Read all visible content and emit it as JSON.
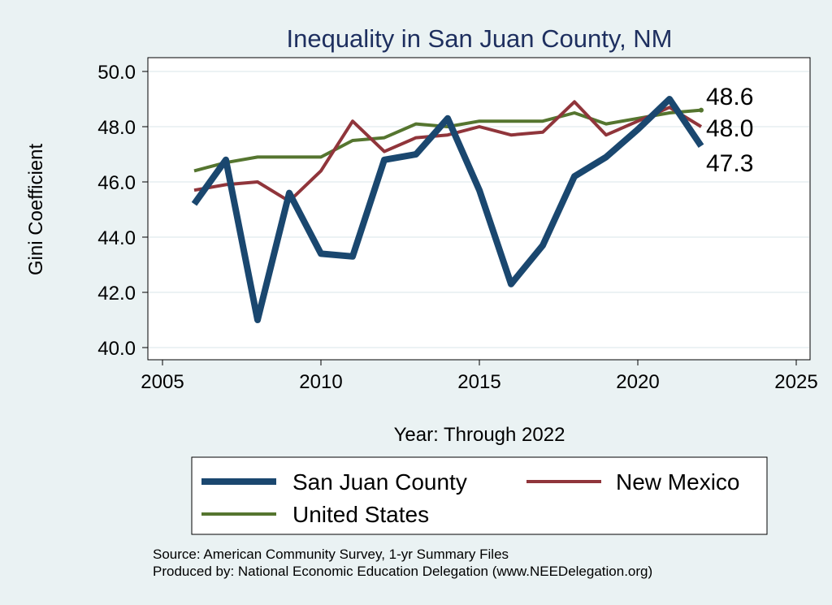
{
  "chart_data": {
    "type": "line",
    "title": "Inequality in San Juan County, NM",
    "xlabel": "Year: Through 2022",
    "ylabel": "Gini Coefficient",
    "xlim": [
      2005,
      2025
    ],
    "ylim": [
      40,
      50
    ],
    "xticks": [
      "2005",
      "2010",
      "2015",
      "2020",
      "2025"
    ],
    "yticks": [
      "40.0",
      "42.0",
      "44.0",
      "46.0",
      "48.0",
      "50.0"
    ],
    "grid": true,
    "legend_position": "bottom",
    "x": [
      2006,
      2007,
      2008,
      2009,
      2010,
      2011,
      2012,
      2013,
      2014,
      2015,
      2016,
      2017,
      2018,
      2019,
      2020,
      2021,
      2022
    ],
    "series": [
      {
        "name": "San Juan County",
        "color": "#1a476f",
        "values": [
          45.2,
          46.8,
          41.0,
          45.6,
          43.4,
          43.3,
          46.8,
          47.0,
          48.3,
          45.7,
          42.3,
          43.7,
          46.2,
          46.9,
          47.9,
          49.0,
          47.3
        ],
        "end_label": "47.3"
      },
      {
        "name": "New Mexico",
        "color": "#90353b",
        "values": [
          45.7,
          45.9,
          46.0,
          45.3,
          46.4,
          48.2,
          47.1,
          47.6,
          47.7,
          48.0,
          47.7,
          47.8,
          48.9,
          47.7,
          48.2,
          48.7,
          48.0
        ],
        "end_label": "48.0"
      },
      {
        "name": "United States",
        "color": "#55752f",
        "values": [
          46.4,
          46.7,
          46.9,
          46.9,
          46.9,
          47.5,
          47.6,
          48.1,
          48.0,
          48.2,
          48.2,
          48.2,
          48.5,
          48.1,
          48.3,
          48.5,
          48.6
        ],
        "end_label": "48.6"
      }
    ],
    "source_lines": [
      "Source: American Community Survey, 1-yr Summary Files",
      "Produced by: National Economic Education Delegation (www.NEEDelegation.org)"
    ]
  }
}
